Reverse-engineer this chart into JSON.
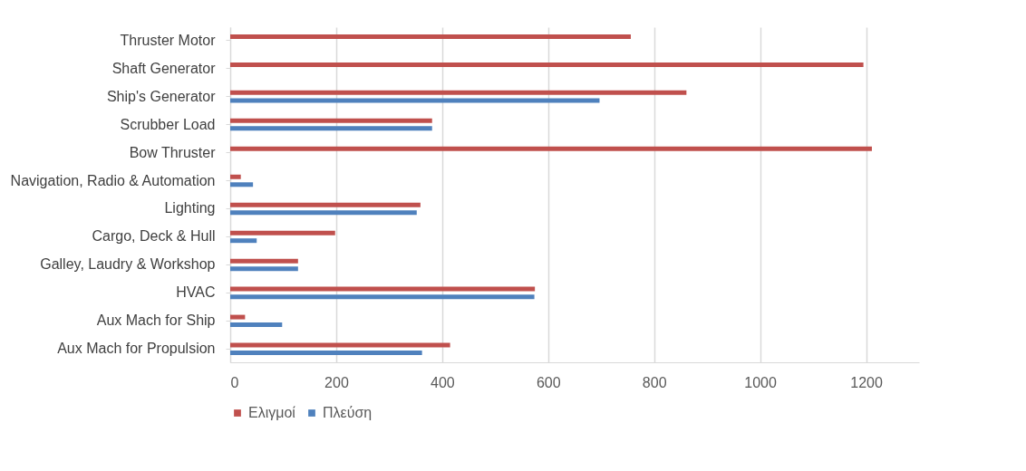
{
  "chart_data": {
    "type": "bar",
    "orientation": "horizontal",
    "categories": [
      "Thruster Motor",
      "Shaft Generator",
      "Ship's Generator",
      "Scrubber Load",
      "Bow Thruster",
      "Navigation, Radio & Automation",
      "Lighting",
      "Cargo, Deck & Hull",
      "Galley, Laudry & Workshop",
      "HVAC",
      "Aux Mach for Ship",
      "Aux Mach for Propulsion"
    ],
    "series": [
      {
        "name": "Ελιγμοί",
        "color": "#c0504d",
        "values": [
          756,
          1195,
          861,
          381,
          1211,
          20,
          359,
          198,
          128,
          575,
          28,
          415
        ]
      },
      {
        "name": "Πλεύση",
        "color": "#4f81bd",
        "values": [
          null,
          null,
          697,
          381,
          null,
          43,
          352,
          50,
          128,
          574,
          98,
          362
        ]
      }
    ],
    "xlim": [
      0,
      1300
    ],
    "xticks": [
      0,
      200,
      400,
      600,
      800,
      1000,
      1200
    ],
    "grid": "x",
    "legend": "bottom"
  }
}
